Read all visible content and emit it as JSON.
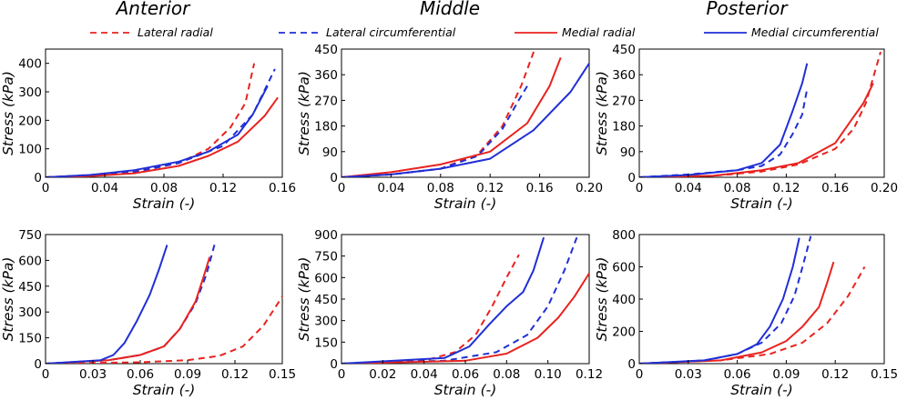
{
  "column_titles": [
    "Anterior",
    "Middle",
    "Posterior"
  ],
  "legend": [
    {
      "label": "Lateral radial",
      "color": "#e8231f",
      "dash": true
    },
    {
      "label": "Lateral circumferential",
      "color": "#1f2fd6",
      "dash": true
    },
    {
      "label": "Medial radial",
      "color": "#e8231f",
      "dash": false
    },
    {
      "label": "Medial circumferential",
      "color": "#1f2fd6",
      "dash": false
    }
  ],
  "chart_data": [
    {
      "type": "line",
      "row": 0,
      "col": 0,
      "xlabel": "Strain (-)",
      "ylabel": "Stress (kPa)",
      "xlim": [
        0,
        0.16
      ],
      "ylim": [
        0,
        450
      ],
      "xticks": [
        0,
        0.04,
        0.08,
        0.12,
        0.16
      ],
      "xtick_labels": [
        "0",
        "0.04",
        "0.08",
        "0.12",
        "0.16"
      ],
      "yticks": [
        0,
        100,
        200,
        300,
        400
      ],
      "ytick_labels": [
        "0",
        "100",
        "200",
        "300",
        "400"
      ],
      "series": [
        {
          "name": "Lateral radial",
          "x": [
            0,
            0.03,
            0.06,
            0.09,
            0.11,
            0.125,
            0.135,
            0.141
          ],
          "y": [
            0,
            8,
            22,
            50,
            100,
            175,
            260,
            400
          ]
        },
        {
          "name": "Lateral circumferential",
          "x": [
            0,
            0.03,
            0.06,
            0.09,
            0.12,
            0.14,
            0.155
          ],
          "y": [
            0,
            5,
            18,
            50,
            110,
            220,
            380
          ]
        },
        {
          "name": "Medial radial",
          "x": [
            0,
            0.03,
            0.06,
            0.09,
            0.11,
            0.13,
            0.148,
            0.157
          ],
          "y": [
            0,
            4,
            14,
            40,
            75,
            125,
            215,
            280
          ]
        },
        {
          "name": "Medial circumferential",
          "x": [
            0,
            0.03,
            0.06,
            0.09,
            0.11,
            0.13,
            0.14,
            0.15
          ],
          "y": [
            0,
            8,
            25,
            55,
            90,
            150,
            220,
            320
          ]
        }
      ]
    },
    {
      "type": "line",
      "row": 0,
      "col": 1,
      "xlabel": "Strain (-)",
      "ylabel": "Stress (kPa)",
      "xlim": [
        0,
        0.2
      ],
      "ylim": [
        0,
        450
      ],
      "xticks": [
        0,
        0.04,
        0.08,
        0.12,
        0.16,
        0.2
      ],
      "xtick_labels": [
        "0",
        "0.04",
        "0.08",
        "0.12",
        "0.16",
        "0.20"
      ],
      "yticks": [
        0,
        90,
        180,
        270,
        360,
        450
      ],
      "ytick_labels": [
        "0",
        "90",
        "180",
        "270",
        "360",
        "450"
      ],
      "series": [
        {
          "name": "Lateral radial",
          "x": [
            0,
            0.04,
            0.08,
            0.11,
            0.13,
            0.145,
            0.156
          ],
          "y": [
            0,
            10,
            30,
            80,
            180,
            320,
            450
          ]
        },
        {
          "name": "Lateral circumferential",
          "x": [
            0,
            0.04,
            0.08,
            0.11,
            0.13,
            0.143,
            0.15
          ],
          "y": [
            0,
            10,
            30,
            75,
            170,
            270,
            320
          ]
        },
        {
          "name": "Medial radial",
          "x": [
            0,
            0.04,
            0.08,
            0.12,
            0.15,
            0.168,
            0.177
          ],
          "y": [
            0,
            18,
            45,
            90,
            190,
            320,
            420
          ]
        },
        {
          "name": "Medial circumferential",
          "x": [
            0,
            0.04,
            0.08,
            0.12,
            0.155,
            0.185,
            0.2
          ],
          "y": [
            0,
            10,
            30,
            65,
            165,
            300,
            400
          ]
        }
      ]
    },
    {
      "type": "line",
      "row": 0,
      "col": 2,
      "xlabel": "Strain (-)",
      "ylabel": "Stress (kPa)",
      "xlim": [
        0,
        0.2
      ],
      "ylim": [
        0,
        450
      ],
      "xticks": [
        0,
        0.04,
        0.08,
        0.12,
        0.16,
        0.2
      ],
      "xtick_labels": [
        "0",
        "0.04",
        "0.08",
        "0.12",
        "0.16",
        "0.20"
      ],
      "yticks": [
        0,
        90,
        180,
        270,
        360,
        450
      ],
      "ytick_labels": [
        "0",
        "90",
        "180",
        "270",
        "360",
        "450"
      ],
      "series": [
        {
          "name": "Lateral radial",
          "x": [
            0,
            0.06,
            0.1,
            0.13,
            0.16,
            0.175,
            0.185,
            0.197
          ],
          "y": [
            0,
            5,
            20,
            45,
            100,
            170,
            260,
            440
          ]
        },
        {
          "name": "Lateral circumferential",
          "x": [
            0,
            0.04,
            0.08,
            0.1,
            0.115,
            0.125,
            0.133,
            0.137
          ],
          "y": [
            0,
            10,
            25,
            40,
            80,
            150,
            220,
            310
          ]
        },
        {
          "name": "Medial radial",
          "x": [
            0,
            0.06,
            0.1,
            0.13,
            0.16,
            0.173,
            0.183,
            0.191
          ],
          "y": [
            0,
            5,
            25,
            50,
            120,
            200,
            260,
            330
          ]
        },
        {
          "name": "Medial circumferential",
          "x": [
            0,
            0.04,
            0.08,
            0.1,
            0.115,
            0.125,
            0.133,
            0.137
          ],
          "y": [
            0,
            8,
            25,
            50,
            115,
            230,
            330,
            400
          ]
        }
      ]
    },
    {
      "type": "line",
      "row": 1,
      "col": 0,
      "xlabel": "Strain (-)",
      "ylabel": "Stress (kPa)",
      "xlim": [
        0,
        0.15
      ],
      "ylim": [
        0,
        750
      ],
      "xticks": [
        0,
        0.03,
        0.06,
        0.09,
        0.12,
        0.15
      ],
      "xtick_labels": [
        "0",
        "0.03",
        "0.06",
        "0.09",
        "0.12",
        "0.15"
      ],
      "yticks": [
        0,
        150,
        300,
        450,
        600,
        750
      ],
      "ytick_labels": [
        "0",
        "150",
        "300",
        "450",
        "600",
        "750"
      ],
      "series": [
        {
          "name": "Lateral radial",
          "x": [
            0,
            0.06,
            0.09,
            0.11,
            0.125,
            0.138,
            0.15
          ],
          "y": [
            0,
            8,
            20,
            45,
            100,
            220,
            390
          ]
        },
        {
          "name": "Lateral circumferential",
          "x": [
            0,
            0.04,
            0.06,
            0.075,
            0.085,
            0.095,
            0.102,
            0.107
          ],
          "y": [
            0,
            20,
            50,
            100,
            200,
            350,
            520,
            690
          ]
        },
        {
          "name": "Medial radial",
          "x": [
            0,
            0.04,
            0.06,
            0.075,
            0.085,
            0.095,
            0.1,
            0.104
          ],
          "y": [
            0,
            20,
            50,
            100,
            200,
            360,
            500,
            620
          ]
        },
        {
          "name": "Medial circumferential",
          "x": [
            0,
            0.035,
            0.043,
            0.05,
            0.058,
            0.066,
            0.072,
            0.077
          ],
          "y": [
            0,
            20,
            50,
            120,
            250,
            400,
            550,
            690
          ]
        }
      ]
    },
    {
      "type": "line",
      "row": 1,
      "col": 1,
      "xlabel": "Strain (-)",
      "ylabel": "Stress (kPa)",
      "xlim": [
        0,
        0.12
      ],
      "ylim": [
        0,
        900
      ],
      "xticks": [
        0,
        0.02,
        0.04,
        0.06,
        0.08,
        0.1,
        0.12
      ],
      "xtick_labels": [
        "0",
        "0.02",
        "0.04",
        "0.06",
        "0.08",
        "0.10",
        "0.12"
      ],
      "yticks": [
        0,
        150,
        300,
        450,
        600,
        750,
        900
      ],
      "ytick_labels": [
        "0",
        "150",
        "300",
        "450",
        "600",
        "750",
        "900"
      ],
      "series": [
        {
          "name": "Lateral radial",
          "x": [
            0,
            0.04,
            0.055,
            0.065,
            0.073,
            0.08,
            0.086
          ],
          "y": [
            0,
            20,
            80,
            200,
            400,
            600,
            760
          ]
        },
        {
          "name": "Lateral circumferential",
          "x": [
            0,
            0.05,
            0.075,
            0.09,
            0.1,
            0.108,
            0.114
          ],
          "y": [
            0,
            20,
            80,
            200,
            400,
            650,
            880
          ]
        },
        {
          "name": "Medial radial",
          "x": [
            0,
            0.06,
            0.08,
            0.095,
            0.105,
            0.113,
            0.12
          ],
          "y": [
            0,
            20,
            70,
            180,
            320,
            470,
            630
          ]
        },
        {
          "name": "Medial circumferential",
          "x": [
            0,
            0.05,
            0.062,
            0.072,
            0.08,
            0.088,
            0.093,
            0.098
          ],
          "y": [
            0,
            40,
            120,
            280,
            400,
            500,
            650,
            880
          ]
        }
      ]
    },
    {
      "type": "line",
      "row": 1,
      "col": 2,
      "xlabel": "Strain (-)",
      "ylabel": "Stress (kPa)",
      "xlim": [
        0,
        0.15
      ],
      "ylim": [
        0,
        800
      ],
      "xticks": [
        0,
        0.03,
        0.06,
        0.09,
        0.12,
        0.15
      ],
      "xtick_labels": [
        "0",
        "0.03",
        "0.06",
        "0.09",
        "0.12",
        "0.15"
      ],
      "yticks": [
        0,
        200,
        400,
        600,
        800
      ],
      "ytick_labels": [
        "0",
        "200",
        "400",
        "600",
        "800"
      ],
      "series": [
        {
          "name": "Lateral radial",
          "x": [
            0,
            0.05,
            0.08,
            0.1,
            0.115,
            0.128,
            0.138
          ],
          "y": [
            0,
            20,
            60,
            130,
            250,
            420,
            600
          ]
        },
        {
          "name": "Lateral circumferential",
          "x": [
            0,
            0.04,
            0.06,
            0.075,
            0.087,
            0.095,
            0.1,
            0.105
          ],
          "y": [
            0,
            20,
            60,
            130,
            250,
            420,
            600,
            790
          ]
        },
        {
          "name": "Medial radial",
          "x": [
            0,
            0.05,
            0.075,
            0.09,
            0.1,
            0.11,
            0.115,
            0.119
          ],
          "y": [
            0,
            20,
            70,
            140,
            230,
            350,
            500,
            630
          ]
        },
        {
          "name": "Medial circumferential",
          "x": [
            0,
            0.04,
            0.06,
            0.072,
            0.08,
            0.088,
            0.094,
            0.098
          ],
          "y": [
            0,
            20,
            60,
            120,
            230,
            400,
            600,
            780
          ]
        }
      ]
    }
  ]
}
